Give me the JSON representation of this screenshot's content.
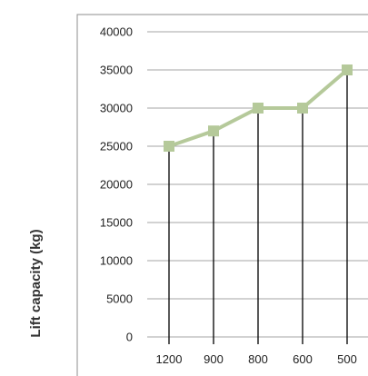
{
  "chart_data": {
    "type": "line",
    "title": "",
    "xlabel": "",
    "ylabel": "Lift capacity (kg)",
    "categories": [
      "1200",
      "900",
      "800",
      "600",
      "500"
    ],
    "series": [
      {
        "values": [
          25000,
          27000,
          30000,
          30000,
          35000
        ]
      }
    ],
    "ylim": [
      0,
      40000
    ],
    "yticks": [
      "0",
      "5000",
      "10000",
      "15000",
      "20000",
      "25000",
      "30000",
      "35000",
      "40000"
    ],
    "grid": true,
    "drop_lines": true,
    "legend": "none",
    "colors": {
      "line": "#b5c99a",
      "marker": "#b5c99a",
      "grid": "#a6a6a6",
      "drop_line": "#000000",
      "frame": "#8c8c8c"
    }
  }
}
